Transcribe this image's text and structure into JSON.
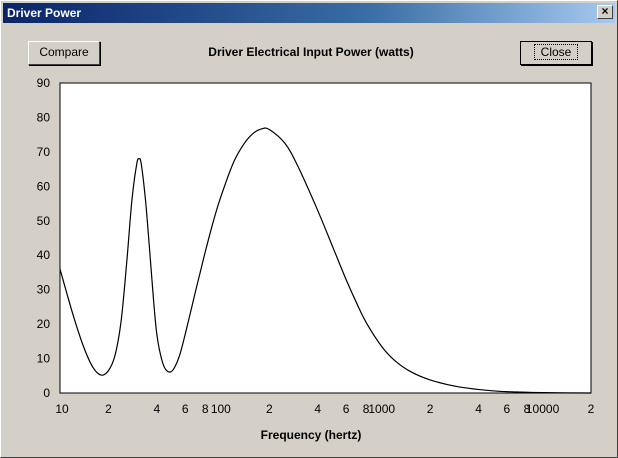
{
  "window": {
    "title": "Driver Power",
    "close_glyph": "×"
  },
  "toolbar": {
    "compare_label": "Compare",
    "close_label": "Close"
  },
  "chart_data": {
    "type": "line",
    "title": "Driver Electrical Input Power (watts)",
    "xlabel": "Frequency (hertz)",
    "ylabel": "",
    "x_scale": "log",
    "xlim": [
      10,
      20000
    ],
    "ylim": [
      0,
      90
    ],
    "grid": true,
    "y_ticks": [
      0,
      10,
      20,
      30,
      40,
      50,
      60,
      70,
      80,
      90
    ],
    "x_tick_labels": [
      {
        "value": 10,
        "label": "10"
      },
      {
        "value": 20,
        "label": "2"
      },
      {
        "value": 40,
        "label": "4"
      },
      {
        "value": 60,
        "label": "6"
      },
      {
        "value": 80,
        "label": "8"
      },
      {
        "value": 100,
        "label": "100"
      },
      {
        "value": 200,
        "label": "2"
      },
      {
        "value": 400,
        "label": "4"
      },
      {
        "value": 600,
        "label": "6"
      },
      {
        "value": 800,
        "label": "8"
      },
      {
        "value": 1000,
        "label": "1000"
      },
      {
        "value": 2000,
        "label": "2"
      },
      {
        "value": 4000,
        "label": "4"
      },
      {
        "value": 6000,
        "label": "6"
      },
      {
        "value": 8000,
        "label": "8"
      },
      {
        "value": 10000,
        "label": "10000"
      },
      {
        "value": 20000,
        "label": "2"
      }
    ],
    "series": [
      {
        "color": "#000000",
        "points": [
          [
            10,
            36
          ],
          [
            12,
            23
          ],
          [
            14,
            13.5
          ],
          [
            16,
            7.5
          ],
          [
            18,
            5.2
          ],
          [
            20,
            6.5
          ],
          [
            22,
            11
          ],
          [
            24,
            21
          ],
          [
            26,
            38
          ],
          [
            28,
            56
          ],
          [
            30,
            66.5
          ],
          [
            31,
            68
          ],
          [
            32,
            66.5
          ],
          [
            34,
            56
          ],
          [
            36,
            42
          ],
          [
            38,
            28
          ],
          [
            40,
            17
          ],
          [
            43,
            9.5
          ],
          [
            46,
            6.5
          ],
          [
            50,
            6.5
          ],
          [
            55,
            10.5
          ],
          [
            60,
            17
          ],
          [
            70,
            30
          ],
          [
            80,
            41
          ],
          [
            90,
            50
          ],
          [
            100,
            57
          ],
          [
            120,
            67
          ],
          [
            140,
            72.5
          ],
          [
            160,
            75.5
          ],
          [
            180,
            76.7
          ],
          [
            200,
            76.5
          ],
          [
            250,
            72.5
          ],
          [
            300,
            66
          ],
          [
            400,
            53
          ],
          [
            500,
            42
          ],
          [
            600,
            33
          ],
          [
            700,
            26
          ],
          [
            800,
            20.5
          ],
          [
            1000,
            13.5
          ],
          [
            1200,
            9.5
          ],
          [
            1500,
            6.3
          ],
          [
            2000,
            3.8
          ],
          [
            3000,
            1.8
          ],
          [
            5000,
            0.6
          ],
          [
            7000,
            0.3
          ],
          [
            10000,
            0.1
          ],
          [
            20000,
            0
          ]
        ]
      }
    ]
  }
}
